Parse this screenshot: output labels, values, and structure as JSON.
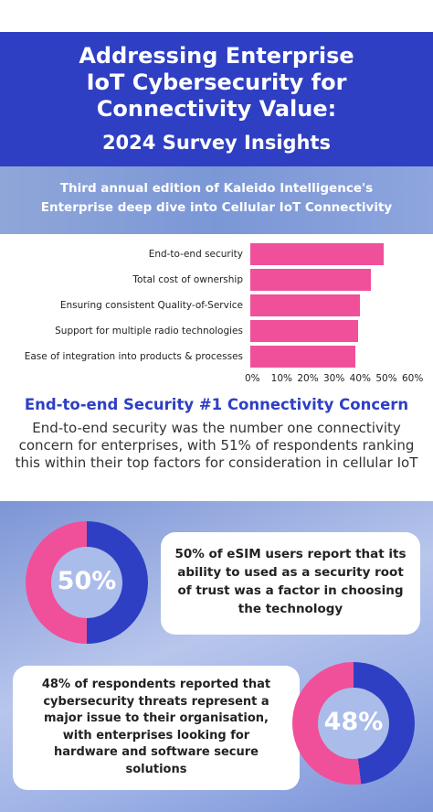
{
  "header": {
    "title_line1": "Addressing Enterprise",
    "title_line2": "IoT Cybersecurity for",
    "title_line3": "Connectivity Value:",
    "subtitle": "2024 Survey Insights"
  },
  "intro": {
    "line1": "Third annual edition of Kaleido Intelligence's",
    "line2": "Enterprise deep dive into Cellular IoT Connectivity"
  },
  "chart_data": {
    "type": "bar",
    "orientation": "horizontal",
    "categories": [
      "End-to-end security",
      "Total cost of ownership",
      "Ensuring consistent Quality-of-Service",
      "Support for multiple radio technologies",
      "Ease of integration into products & processes"
    ],
    "values": [
      51,
      46,
      42,
      41,
      40
    ],
    "x_ticks": [
      "0%",
      "10%",
      "20%",
      "30%",
      "40%",
      "50%",
      "60%"
    ],
    "xlim": [
      0,
      60
    ],
    "bar_color": "#f0509a"
  },
  "concern": {
    "title": "End-to-end Security #1 Connectivity Concern",
    "body": "End-to-end security was the number one connectivity concern for enterprises, with 51% of respondents ranking this within their top factors for consideration in cellular IoT"
  },
  "stat1": {
    "label": "50%",
    "value": 50,
    "text": "50% of eSIM users report that its ability to used as a security root of trust was a factor in choosing the technology"
  },
  "stat2": {
    "label": "48%",
    "value": 48,
    "text": "48% of respondents reported that cybersecurity threats represent a major issue to their organisation, with enterprises looking for hardware and software secure solutions"
  },
  "colors": {
    "blue": "#2e3fc4",
    "pink": "#f0509a"
  }
}
